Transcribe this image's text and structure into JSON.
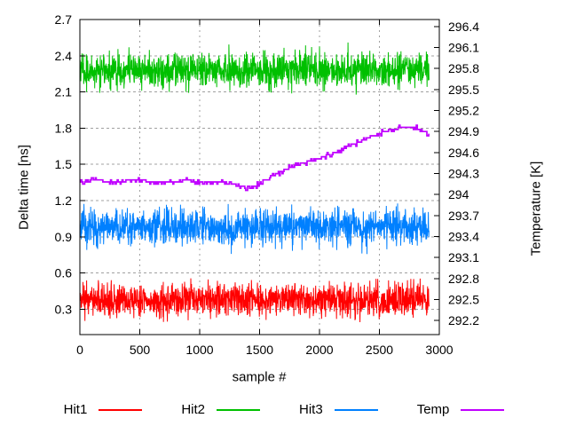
{
  "window": {
    "background": "#ffffff"
  },
  "chart_data": {
    "type": "line",
    "title": "",
    "xlabel": "sample #",
    "ylabel": "Delta time [ns]",
    "y2label": "Temperature [K]",
    "xlim": [
      0,
      3000
    ],
    "ylim": [
      0.09,
      2.7
    ],
    "y2lim": [
      292.0,
      296.5
    ],
    "x_ticks": [
      0,
      500,
      1000,
      1500,
      2000,
      2500,
      3000
    ],
    "y_ticks": [
      0.3,
      0.6,
      0.9,
      1.2,
      1.5,
      1.8,
      2.1,
      2.4,
      2.7
    ],
    "y2_ticks": [
      292.2,
      292.5,
      292.8,
      293.1,
      293.4,
      293.7,
      294,
      294.3,
      294.6,
      294.9,
      295.2,
      295.5,
      295.8,
      296.1,
      296.4
    ],
    "grid": "dashed-gray",
    "grid_color": "#a0a0a0",
    "legend_position": "below-plot",
    "samples_end": 2915,
    "series": [
      {
        "name": "Hit1",
        "axis": "y1",
        "kind": "noise",
        "color": "#ff0000",
        "mean": 0.375,
        "noise_amp": 0.24,
        "spike_amp": 0.12,
        "seed": 9
      },
      {
        "name": "Hit2",
        "axis": "y1",
        "kind": "noise",
        "color": "#00c000",
        "mean": 2.28,
        "noise_amp": 0.25,
        "spike_amp": 0.12,
        "seed": 5
      },
      {
        "name": "Hit3",
        "axis": "y1",
        "kind": "noise",
        "color": "#0080ff",
        "mean": 0.98,
        "noise_amp": 0.25,
        "spike_amp": 0.14,
        "seed": 3
      },
      {
        "name": "Temp",
        "axis": "y2",
        "kind": "steps",
        "color": "#c000ff",
        "quantum": 0.03,
        "jitter_prob": 0.3,
        "seed": 17,
        "points": [
          [
            0,
            294.17
          ],
          [
            100,
            294.2
          ],
          [
            300,
            294.19
          ],
          [
            500,
            294.2
          ],
          [
            700,
            294.18
          ],
          [
            900,
            294.2
          ],
          [
            1100,
            294.18
          ],
          [
            1250,
            294.17
          ],
          [
            1330,
            294.12
          ],
          [
            1400,
            294.08
          ],
          [
            1460,
            294.12
          ],
          [
            1520,
            294.19
          ],
          [
            1580,
            294.24
          ],
          [
            1660,
            294.31
          ],
          [
            1740,
            294.38
          ],
          [
            1840,
            294.44
          ],
          [
            1940,
            294.49
          ],
          [
            2040,
            294.55
          ],
          [
            2140,
            294.61
          ],
          [
            2240,
            294.69
          ],
          [
            2340,
            294.76
          ],
          [
            2440,
            294.83
          ],
          [
            2540,
            294.9
          ],
          [
            2630,
            294.94
          ],
          [
            2720,
            294.96
          ],
          [
            2800,
            294.96
          ],
          [
            2860,
            294.91
          ],
          [
            2915,
            294.86
          ]
        ]
      }
    ]
  },
  "legend": {
    "items": [
      {
        "label": "Hit1",
        "color": "#ff0000"
      },
      {
        "label": "Hit2",
        "color": "#00c000"
      },
      {
        "label": "Hit3",
        "color": "#0080ff"
      },
      {
        "label": "Temp",
        "color": "#c000ff"
      }
    ]
  }
}
